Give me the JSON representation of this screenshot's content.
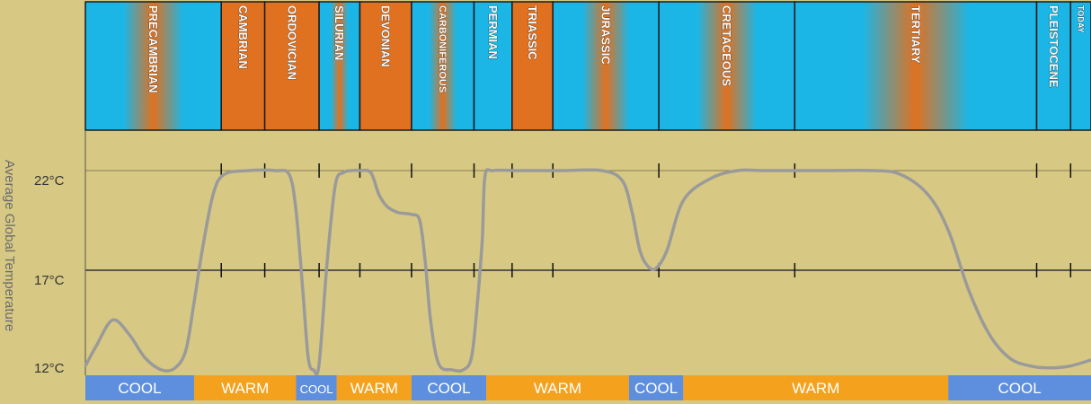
{
  "chart_data": {
    "type": "line",
    "ylabel": "Average Global Temperature",
    "ylim": [
      12,
      22
    ],
    "yticks": [
      {
        "value": 22,
        "label": "22°C"
      },
      {
        "value": 17,
        "label": "17°C"
      },
      {
        "value": 12,
        "label": "12°C"
      }
    ],
    "grid_horizontal": true,
    "colors": {
      "background": "#d7c983",
      "warm": "#e07120",
      "cool": "#1cb6e6",
      "warm_band": "#f4a21d",
      "cool_band": "#5d8fde",
      "curve": "#9a9a9a",
      "gridline": "#333333",
      "period_border": "#1a1a1a"
    },
    "periods": [
      {
        "name": "PRECAMBRIAN",
        "start": 0,
        "end": 1.0,
        "climate": "mixed"
      },
      {
        "name": "CAMBRIAN",
        "start": 1.0,
        "end": 1.32,
        "climate": "warm"
      },
      {
        "name": "ORDOVICIAN",
        "start": 1.32,
        "end": 1.72,
        "climate": "warm"
      },
      {
        "name": "SILURIAN",
        "start": 1.72,
        "end": 2.02,
        "climate": "mixed"
      },
      {
        "name": "DEVONIAN",
        "start": 2.02,
        "end": 2.4,
        "climate": "warm"
      },
      {
        "name": "CARBONIFEROUS",
        "start": 2.4,
        "end": 2.86,
        "climate": "mixed"
      },
      {
        "name": "PERMIAN",
        "start": 2.86,
        "end": 3.14,
        "climate": "cool"
      },
      {
        "name": "TRIASSIC",
        "start": 3.14,
        "end": 3.44,
        "climate": "warm"
      },
      {
        "name": "JURASSIC",
        "start": 3.44,
        "end": 4.22,
        "climate": "mixed"
      },
      {
        "name": "CRETACEOUS",
        "start": 4.22,
        "end": 5.22,
        "climate": "mixed"
      },
      {
        "name": "TERTIARY",
        "start": 5.22,
        "end": 7.0,
        "climate": "mixed"
      },
      {
        "name": "PLEISTOCENE",
        "start": 7.0,
        "end": 7.25,
        "climate": "cool"
      },
      {
        "name": "TODAY",
        "start": 7.25,
        "end": 7.4,
        "climate": "cool"
      }
    ],
    "climate_bands": [
      {
        "label": "COOL",
        "start": 0,
        "end": 0.8,
        "type": "cool"
      },
      {
        "label": "WARM",
        "start": 0.8,
        "end": 1.55,
        "type": "warm"
      },
      {
        "label": "COOL",
        "start": 1.55,
        "end": 1.85,
        "type": "cool"
      },
      {
        "label": "WARM",
        "start": 1.85,
        "end": 2.4,
        "type": "warm"
      },
      {
        "label": "COOL",
        "start": 2.4,
        "end": 2.95,
        "type": "cool"
      },
      {
        "label": "WARM",
        "start": 2.95,
        "end": 4.0,
        "type": "warm"
      },
      {
        "label": "COOL",
        "start": 4.0,
        "end": 4.4,
        "type": "cool"
      },
      {
        "label": "WARM",
        "start": 4.4,
        "end": 6.35,
        "type": "warm"
      },
      {
        "label": "COOL",
        "start": 6.35,
        "end": 7.4,
        "type": "cool"
      }
    ],
    "series": [
      {
        "x": [
          0,
          0.08,
          0.2,
          0.32,
          0.44,
          0.56,
          0.66,
          0.74,
          0.8,
          0.86,
          0.94,
          1.02,
          1.2,
          1.4,
          1.5,
          1.55,
          1.6,
          1.64,
          1.68,
          1.72,
          1.78,
          1.84,
          1.9,
          1.96,
          2.02,
          2.1,
          2.16,
          2.22,
          2.3,
          2.4,
          2.46,
          2.5,
          2.54,
          2.6,
          2.7,
          2.78,
          2.84,
          2.88,
          2.92,
          2.94,
          3.0,
          3.2,
          3.5,
          3.8,
          3.95,
          4.02,
          4.08,
          4.14,
          4.2,
          4.28,
          4.4,
          4.6,
          4.8,
          5.0,
          5.4,
          5.8,
          6.0,
          6.2,
          6.35,
          6.5,
          6.65,
          6.8,
          6.95,
          7.1,
          7.25,
          7.4
        ],
        "y": [
          12.2,
          13.2,
          14.5,
          13.8,
          12.6,
          12.0,
          12.1,
          13.0,
          15.4,
          18.0,
          20.8,
          21.8,
          22.0,
          22.0,
          21.8,
          20.0,
          16.0,
          12.6,
          12.0,
          12.3,
          17.5,
          21.3,
          21.9,
          22.0,
          22.0,
          21.9,
          20.8,
          20.2,
          19.9,
          19.8,
          19.5,
          17.5,
          14.5,
          12.3,
          12.0,
          12.0,
          12.6,
          15.0,
          18.5,
          21.7,
          22.0,
          22.0,
          22.0,
          22.0,
          21.5,
          20.0,
          18.0,
          17.2,
          17.1,
          18.0,
          20.5,
          21.6,
          22.0,
          22.0,
          22.0,
          22.0,
          21.8,
          20.8,
          19.0,
          16.0,
          13.8,
          12.6,
          12.2,
          12.1,
          12.2,
          12.5
        ]
      }
    ]
  }
}
